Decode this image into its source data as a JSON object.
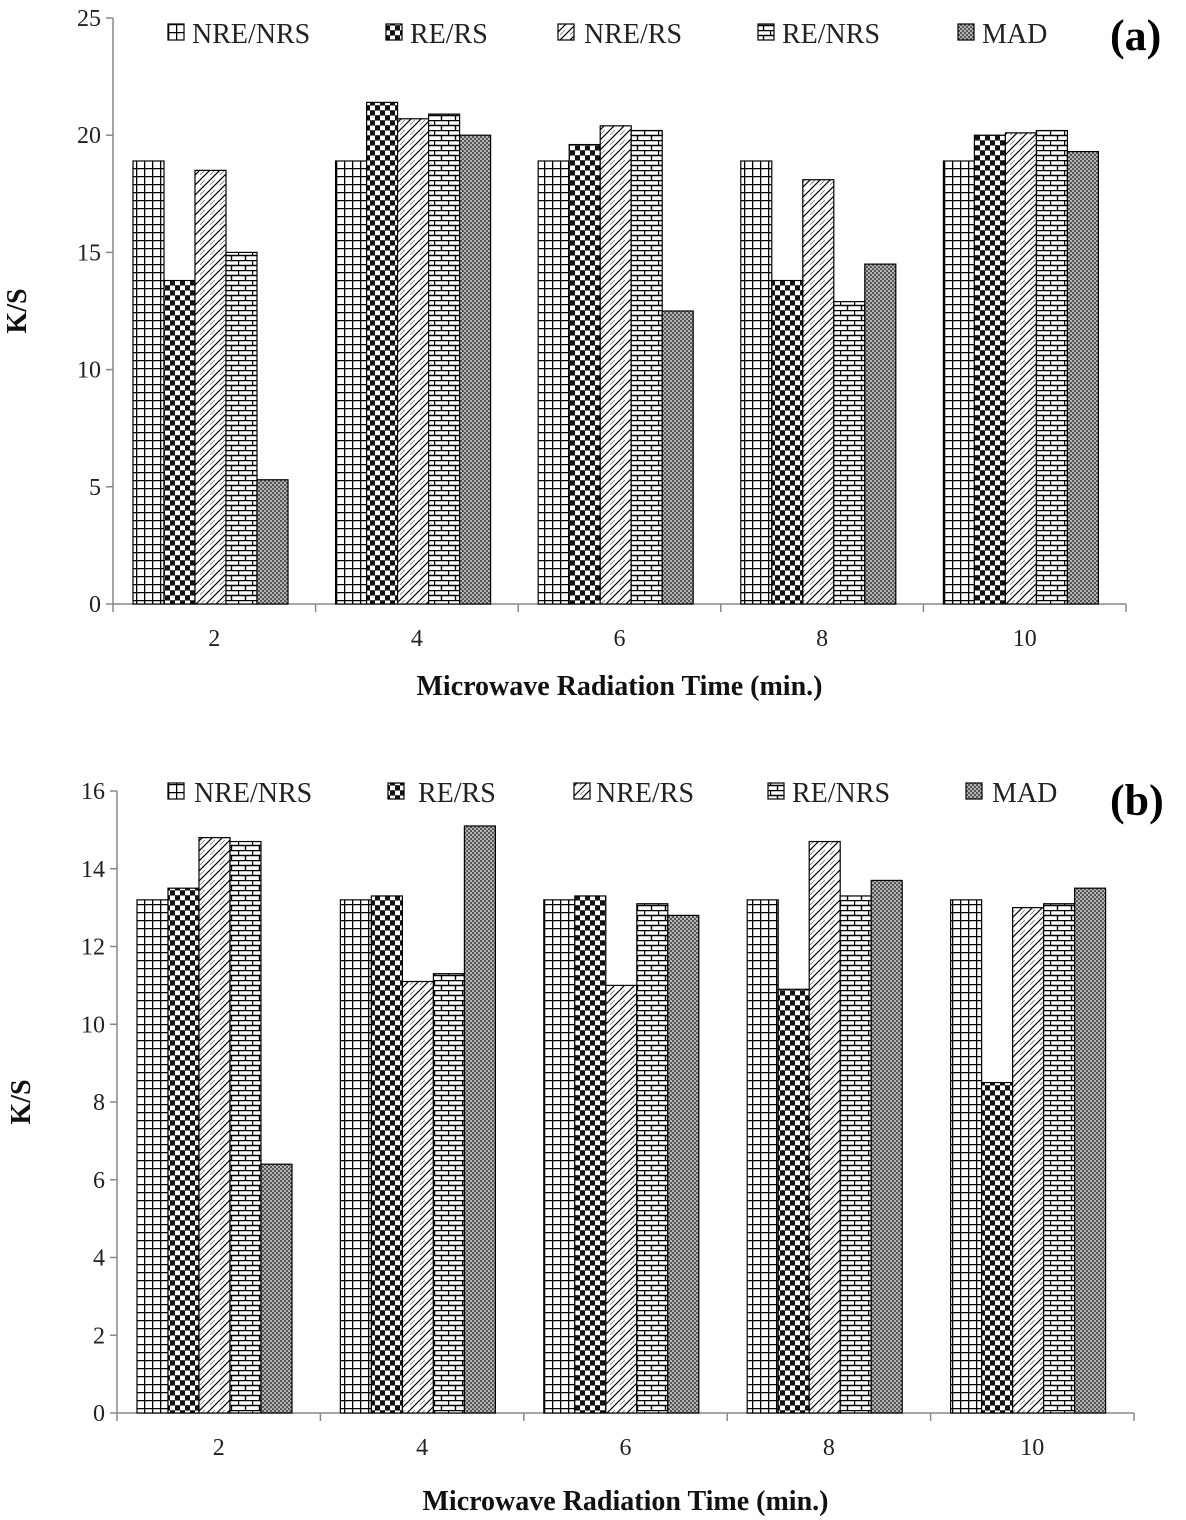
{
  "chart_data": [
    {
      "type": "bar",
      "panel_label": "(a)",
      "categories": [
        "2",
        "4",
        "6",
        "8",
        "10"
      ],
      "series": [
        {
          "name": "NRE/NRS",
          "pattern": "grid",
          "values": [
            18.9,
            18.9,
            18.9,
            18.9,
            18.9
          ]
        },
        {
          "name": "RE/RS",
          "pattern": "checker",
          "values": [
            13.8,
            21.4,
            19.6,
            13.8,
            20.0
          ]
        },
        {
          "name": "NRE/RS",
          "pattern": "zigzag",
          "values": [
            18.5,
            20.7,
            20.4,
            18.1,
            20.1
          ]
        },
        {
          "name": "RE/NRS",
          "pattern": "brick",
          "values": [
            15.0,
            20.9,
            20.2,
            12.9,
            20.2
          ]
        },
        {
          "name": "MAD",
          "pattern": "dots",
          "values": [
            5.3,
            20.0,
            12.5,
            14.5,
            19.3
          ]
        }
      ],
      "xlabel": "Microwave Radiation Time (min.)",
      "ylabel": "K/S",
      "ylim": [
        0,
        25
      ],
      "yticks": [
        0,
        5,
        10,
        15,
        20,
        25
      ],
      "legend": "top"
    },
    {
      "type": "bar",
      "panel_label": "(b)",
      "categories": [
        "2",
        "4",
        "6",
        "8",
        "10"
      ],
      "series": [
        {
          "name": "NRE/NRS",
          "pattern": "grid",
          "values": [
            13.2,
            13.2,
            13.2,
            13.2,
            13.2
          ]
        },
        {
          "name": "RE/RS",
          "pattern": "checker",
          "values": [
            13.5,
            13.3,
            13.3,
            10.9,
            8.5
          ]
        },
        {
          "name": "NRE/RS",
          "pattern": "zigzag",
          "values": [
            14.8,
            11.1,
            11.0,
            14.7,
            13.0
          ]
        },
        {
          "name": "RE/NRS",
          "pattern": "brick",
          "values": [
            14.7,
            11.3,
            13.1,
            13.3,
            13.1
          ]
        },
        {
          "name": "MAD",
          "pattern": "dots",
          "values": [
            6.4,
            15.1,
            12.8,
            13.7,
            13.5
          ]
        }
      ],
      "xlabel": "Microwave Radiation Time (min.)",
      "ylabel": "K/S",
      "ylim": [
        0,
        16
      ],
      "yticks": [
        0,
        2,
        4,
        6,
        8,
        10,
        12,
        14,
        16
      ],
      "legend": "top"
    }
  ]
}
